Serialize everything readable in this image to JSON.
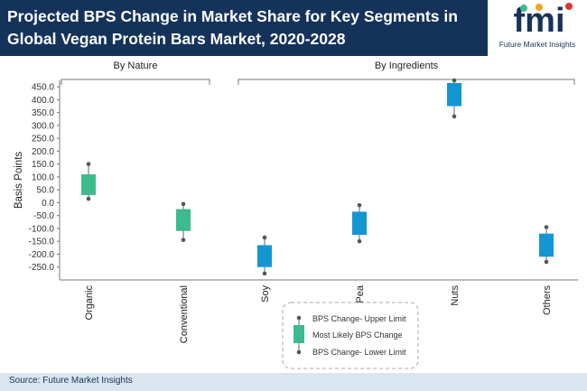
{
  "header": {
    "title": "Projected BPS Change in Market Share for Key Segments in Global Vegan Protein Bars Market, 2020-2028"
  },
  "logo": {
    "letters": "fmi",
    "tagline": "Future Market Insights"
  },
  "footer": {
    "source": "Source: Future Market Insights"
  },
  "colors": {
    "header_bg": "#15325b",
    "nature": "#3dbb8e",
    "ingredients": "#1496d2",
    "footer_bg": "#d9e5ef"
  },
  "chart_data": {
    "type": "box",
    "ylabel": "Basis Points",
    "ylim": [
      -300,
      475
    ],
    "yticks": [
      -250,
      -200,
      -150,
      -100,
      -50,
      0,
      50,
      100,
      150,
      200,
      250,
      300,
      350,
      400,
      450
    ],
    "tick_labels": [
      "-250.0",
      "-200.0",
      "-150.0",
      "-100.0",
      "-50.0",
      "0.0",
      "50.0",
      "100.0",
      "150.0",
      "200.0",
      "250.0",
      "300.0",
      "350.0",
      "400.0",
      "450.0"
    ],
    "groups": [
      {
        "label": "By Nature",
        "categories": [
          "Organic",
          "Conventional"
        ]
      },
      {
        "label": "By Ingredients",
        "categories": [
          "Soy",
          "Pea",
          "Nuts",
          "Others"
        ]
      }
    ],
    "categories": [
      "Organic",
      "Conventional",
      "Soy",
      "Pea",
      "Nuts",
      "Others"
    ],
    "series": [
      {
        "category": "Organic",
        "group": "By Nature",
        "lower": 15,
        "box_low": 30,
        "box_high": 110,
        "upper": 150
      },
      {
        "category": "Conventional",
        "group": "By Nature",
        "lower": -145,
        "box_low": -110,
        "box_high": -25,
        "upper": -5
      },
      {
        "category": "Soy",
        "group": "By Ingredients",
        "lower": -275,
        "box_low": -250,
        "box_high": -165,
        "upper": -135
      },
      {
        "category": "Pea",
        "group": "By Ingredients",
        "lower": -150,
        "box_low": -125,
        "box_high": -35,
        "upper": -10
      },
      {
        "category": "Nuts",
        "group": "By Ingredients",
        "lower": 335,
        "box_low": 375,
        "box_high": 465,
        "upper": 475
      },
      {
        "category": "Others",
        "group": "By Ingredients",
        "lower": -230,
        "box_low": -210,
        "box_high": -120,
        "upper": -95
      }
    ],
    "legend": {
      "position": "bottom-center",
      "upper": "BPS Change- Upper Limit",
      "middle": "Most Likely BPS Change",
      "lower": "BPS Change- Lower Limit"
    }
  }
}
